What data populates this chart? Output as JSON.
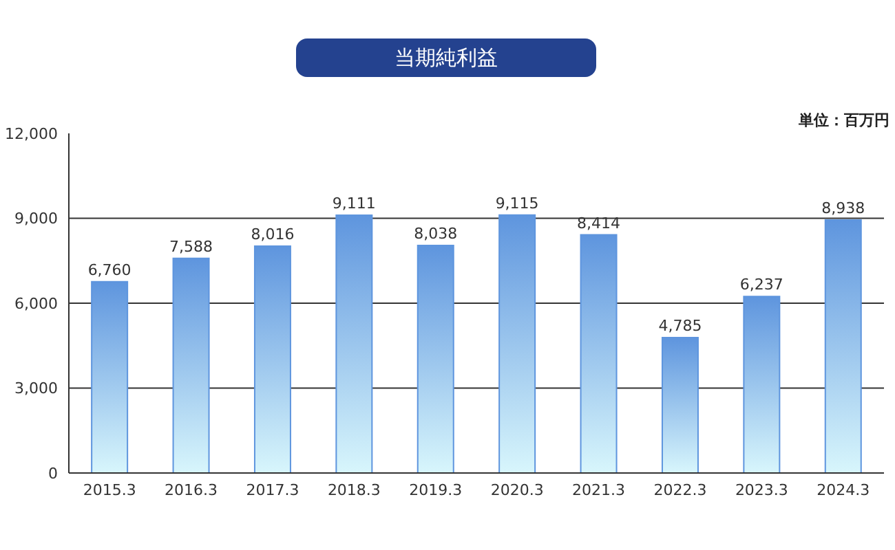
{
  "chart_data": {
    "type": "bar",
    "title": "当期純利益",
    "annotations": [
      "単位：百万円"
    ],
    "categories": [
      "2015.3",
      "2016.3",
      "2017.3",
      "2018.3",
      "2019.3",
      "2020.3",
      "2021.3",
      "2022.3",
      "2023.3",
      "2024.3"
    ],
    "values": [
      6760,
      7588,
      8016,
      9111,
      8038,
      9115,
      8414,
      4785,
      6237,
      8938
    ],
    "value_labels": [
      "6,760",
      "7,588",
      "8,016",
      "9,111",
      "8,038",
      "9,115",
      "8,414",
      "4,785",
      "6,237",
      "8,938"
    ],
    "color": "#5e95de",
    "ylim": [
      0,
      12000
    ],
    "yticks": [
      {
        "value": 0,
        "label": "0"
      },
      {
        "value": 3000,
        "label": "3,000"
      },
      {
        "value": 6000,
        "label": "6,000"
      },
      {
        "value": 9000,
        "label": "9,000"
      },
      {
        "value": 12000,
        "label": "12,000"
      }
    ],
    "grid": "y"
  }
}
